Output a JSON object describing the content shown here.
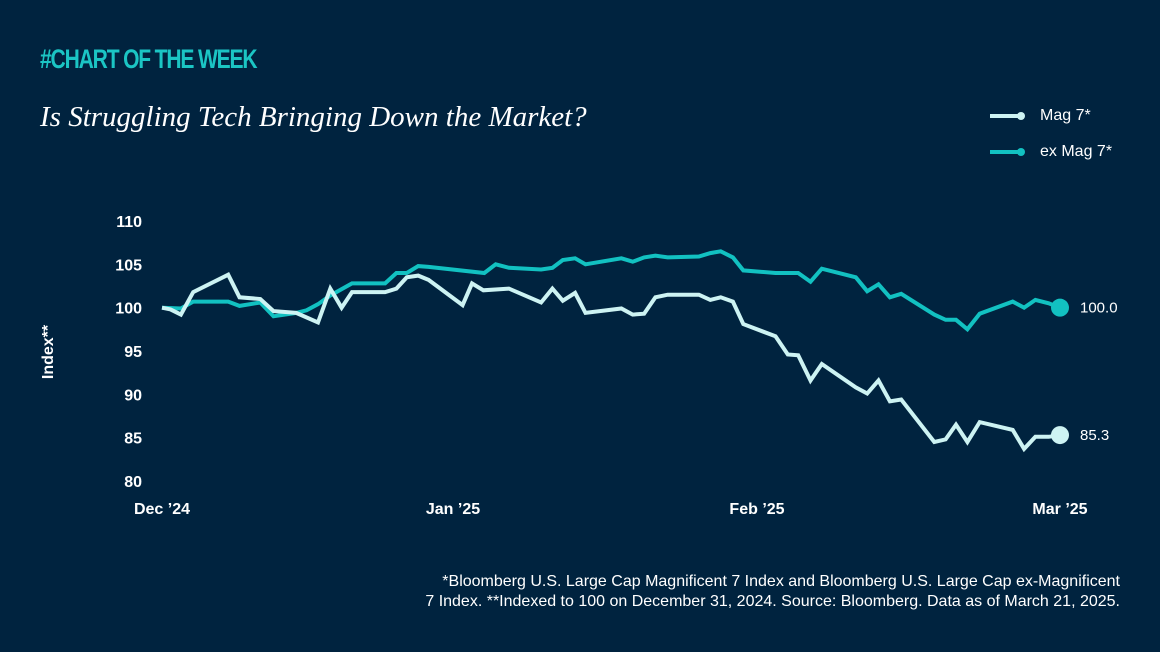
{
  "header": {
    "kicker": "#CHART OF THE WEEK",
    "title": "Is Struggling Tech Bringing Down the Market?"
  },
  "legend": [
    {
      "label": "Mag 7*",
      "color": "#cdf3f3"
    },
    {
      "label": "ex Mag 7*",
      "color": "#12c1c1"
    }
  ],
  "footnote": {
    "line1": "*Bloomberg U.S. Large Cap Magnificent 7 Index and Bloomberg U.S. Large Cap ex-Magnificent",
    "line2": "7 Index. **Indexed to 100 on December 31, 2024. Source: Bloomberg. Data as of March 21, 2025."
  },
  "chart_data": {
    "type": "line",
    "title": "Is Struggling Tech Bringing Down the Market?",
    "xlabel": "",
    "ylabel": "Index**",
    "ylim": [
      80,
      110
    ],
    "yticks": [
      110,
      105,
      100,
      95,
      90,
      85,
      80
    ],
    "xticks": [
      {
        "label": "Dec ’24",
        "day": 0
      },
      {
        "label": "Jan ’25",
        "day": 31
      },
      {
        "label": "Feb ’25",
        "day": 62
      },
      {
        "label": "Mar ’25",
        "day": 90
      }
    ],
    "xlim_days": [
      0,
      90
    ],
    "grid": false,
    "legend_position": "top-right",
    "series": [
      {
        "name": "Mag 7*",
        "color": "#cdf3f3",
        "end_label": "85.3",
        "points": [
          [
            0,
            100.0
          ],
          [
            0.9,
            99.8
          ],
          [
            2.0,
            99.2
          ],
          [
            3.3,
            101.8
          ],
          [
            7.0,
            103.8
          ],
          [
            8.2,
            101.2
          ],
          [
            10.4,
            101.0
          ],
          [
            11.8,
            99.6
          ],
          [
            14.2,
            99.4
          ],
          [
            16.5,
            98.3
          ],
          [
            17.8,
            102.2
          ],
          [
            19.0,
            100.0
          ],
          [
            20.1,
            101.8
          ],
          [
            23.6,
            101.8
          ],
          [
            24.8,
            102.2
          ],
          [
            25.9,
            103.5
          ],
          [
            27.1,
            103.7
          ],
          [
            28.2,
            103.2
          ],
          [
            31.8,
            100.3
          ],
          [
            32.8,
            102.8
          ],
          [
            34.0,
            102.0
          ],
          [
            36.7,
            102.2
          ],
          [
            40.1,
            100.6
          ],
          [
            41.3,
            102.2
          ],
          [
            42.4,
            100.8
          ],
          [
            43.7,
            101.7
          ],
          [
            44.8,
            99.4
          ],
          [
            48.6,
            99.9
          ],
          [
            49.8,
            99.2
          ],
          [
            51.0,
            99.3
          ],
          [
            52.2,
            101.2
          ],
          [
            53.5,
            101.5
          ],
          [
            56.8,
            101.5
          ],
          [
            58.0,
            100.9
          ],
          [
            59.1,
            101.2
          ],
          [
            60.4,
            100.7
          ],
          [
            61.5,
            98.1
          ],
          [
            64.9,
            96.7
          ],
          [
            66.2,
            94.6
          ],
          [
            67.3,
            94.5
          ],
          [
            68.6,
            91.6
          ],
          [
            69.8,
            93.5
          ],
          [
            73.4,
            90.8
          ],
          [
            74.6,
            90.1
          ],
          [
            75.8,
            91.6
          ],
          [
            77.0,
            89.2
          ],
          [
            78.2,
            89.4
          ],
          [
            81.7,
            84.5
          ],
          [
            82.9,
            84.8
          ],
          [
            84.0,
            86.5
          ],
          [
            85.2,
            84.5
          ],
          [
            86.5,
            86.8
          ],
          [
            90.0,
            85.9
          ],
          [
            91.2,
            83.7
          ],
          [
            92.4,
            85.1
          ],
          [
            93.8,
            85.1
          ],
          [
            95.0,
            85.3
          ]
        ]
      },
      {
        "name": "ex Mag 7*",
        "color": "#12c1c1",
        "end_label": "100.0",
        "points": [
          [
            0,
            100.0
          ],
          [
            2.0,
            99.9
          ],
          [
            3.3,
            100.7
          ],
          [
            7.0,
            100.7
          ],
          [
            8.2,
            100.2
          ],
          [
            10.4,
            100.6
          ],
          [
            11.8,
            99.0
          ],
          [
            14.2,
            99.4
          ],
          [
            15.3,
            99.7
          ],
          [
            16.5,
            100.4
          ],
          [
            17.8,
            101.4
          ],
          [
            20.1,
            102.8
          ],
          [
            23.6,
            102.8
          ],
          [
            24.8,
            104.0
          ],
          [
            25.9,
            104.0
          ],
          [
            27.1,
            104.8
          ],
          [
            28.2,
            104.7
          ],
          [
            34.1,
            104.0
          ],
          [
            35.3,
            105.0
          ],
          [
            36.7,
            104.6
          ],
          [
            40.1,
            104.4
          ],
          [
            41.3,
            104.6
          ],
          [
            42.4,
            105.5
          ],
          [
            43.7,
            105.7
          ],
          [
            44.8,
            105.0
          ],
          [
            48.6,
            105.7
          ],
          [
            49.8,
            105.3
          ],
          [
            51.0,
            105.8
          ],
          [
            52.2,
            106.0
          ],
          [
            53.5,
            105.8
          ],
          [
            56.8,
            105.9
          ],
          [
            58.0,
            106.3
          ],
          [
            59.1,
            106.5
          ],
          [
            60.4,
            105.8
          ],
          [
            61.5,
            104.3
          ],
          [
            64.9,
            104.0
          ],
          [
            67.3,
            104.0
          ],
          [
            68.6,
            103.0
          ],
          [
            69.8,
            104.5
          ],
          [
            73.4,
            103.5
          ],
          [
            74.6,
            101.9
          ],
          [
            75.8,
            102.7
          ],
          [
            77.0,
            101.2
          ],
          [
            78.2,
            101.6
          ],
          [
            81.7,
            99.2
          ],
          [
            82.9,
            98.6
          ],
          [
            84.0,
            98.6
          ],
          [
            85.2,
            97.5
          ],
          [
            86.5,
            99.3
          ],
          [
            90.0,
            100.7
          ],
          [
            91.2,
            100.0
          ],
          [
            92.4,
            100.9
          ],
          [
            93.8,
            100.5
          ],
          [
            95.0,
            100.0
          ]
        ]
      }
    ]
  }
}
